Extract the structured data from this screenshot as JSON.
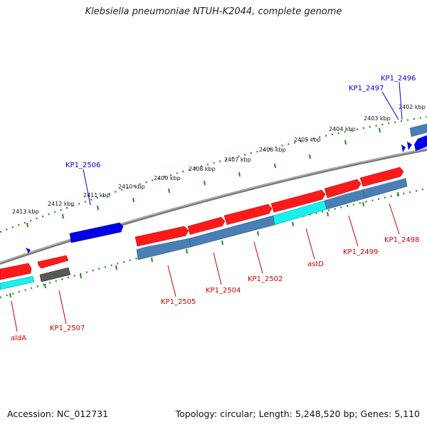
{
  "title": "Klebsiella pneumoniae NTUH-K2044, complete genome",
  "footer": {
    "accession": "Accession: NC_012731",
    "topology": "Topology: circular; Length: 5,248,520 bp; Genes: 5,110"
  },
  "colors": {
    "backbone": "#808080",
    "ticks": "#228B22",
    "forward_cds": "#FF0000",
    "reverse_cds": "#0000FF",
    "gene_bar": "#4682B4",
    "cyan_bar": "#00FFFF",
    "dark_bar": "#505050",
    "label_forward": "#CC0000",
    "label_reverse": "#0000CC"
  },
  "ruler": {
    "labels": [
      "2413 kbp",
      "2412 kbp",
      "2411 kbp",
      "2410 kbp",
      "2409 kbp",
      "2408 kbp",
      "2407 kbp",
      "2406 kbp",
      "2405 kbp",
      "2404 kbp",
      "2403 kbp",
      "2402 kbp"
    ]
  },
  "genes": {
    "forward": [
      "aldA",
      "KP1_2507",
      "KP1_2505",
      "KP1_2504",
      "KP1_2502",
      "astD",
      "KP1_2499",
      "KP1_2498"
    ],
    "reverse": [
      "KP1_2506",
      "KP1_2497",
      "KP1_2496"
    ]
  }
}
